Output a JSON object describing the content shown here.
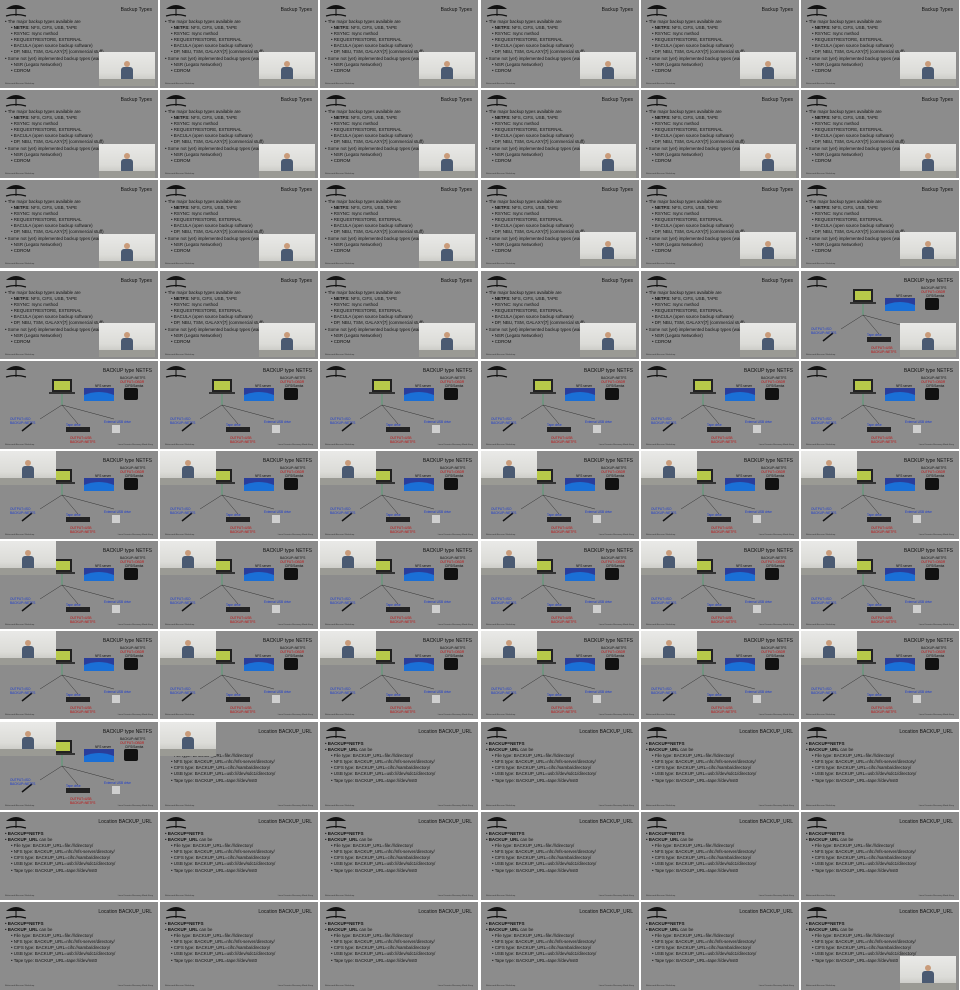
{
  "grid": {
    "columns": 6,
    "rows": 11
  },
  "colors": {
    "slide_bg": "#8c8c8c",
    "text": "#111111",
    "blue_label": "#1b3bd0",
    "red_label": "#c01010"
  },
  "slides": {
    "types": {
      "title": "Backup Types",
      "lines": [
        {
          "level": 1,
          "text": "The major backup types available are"
        },
        {
          "level": 2,
          "bold": "NETFS:",
          "text": " NFS, CIFS, USB, TAPE"
        },
        {
          "level": 2,
          "text": "RSYNC: rsync method"
        },
        {
          "level": 2,
          "text": "REQUESTRESTORE, EXTERNAL"
        },
        {
          "level": 2,
          "text": "BACULA (open source backup software)"
        },
        {
          "level": 2,
          "text": "DP, NBU, TSM, GALAXY[7] (commercial stuff)"
        },
        {
          "level": 1,
          "text": "Some not (yet) implemented backup types (waiting on sponsors)"
        },
        {
          "level": 2,
          "text": "NSR (Legato Networker)"
        },
        {
          "level": 2,
          "text": "CDROM"
        }
      ]
    },
    "netfs": {
      "title": "BACKUP type NETFS",
      "labels": {
        "nfs_server": "NFS server",
        "cifs": "CIFS/Samba",
        "tape": "Tape drive",
        "usb": "External USB drive",
        "output_left": "OUTPUT=ISO",
        "backup_left": "BACKUP=NETFS",
        "output_mid": "OUTPUT=USB",
        "backup_mid": "BACKUP=NETFS",
        "output_right": "OUTPUT=OBDR",
        "backup_right": "BACKUP=NETFS"
      }
    },
    "url": {
      "title": "Location BACKUP_URL",
      "lines": [
        {
          "level": 1,
          "bold": "BACKUP=NETFS",
          "text": ""
        },
        {
          "level": 1,
          "bold": "BACKUP_URL",
          "text": " can be"
        },
        {
          "level": 2,
          "text": "File type: BACKUP_URL=file:///directory/"
        },
        {
          "level": 2,
          "text": "NFS type: BACKUP_URL=nfs://nfs-server/directory/"
        },
        {
          "level": 2,
          "text": "CIFS type: BACKUP_URL=cifs://samba/directory/"
        },
        {
          "level": 2,
          "text": "USB type: BACKUP_URL=usb:///dev/sdc1/directory/"
        },
        {
          "level": 2,
          "text": "Tape type: BACKUP_URL=tape:///dev/nst0"
        }
      ]
    },
    "footer": "Relax-and-Recover Workshop",
    "footer_right": "Linux Disaster Recovery Made Easy"
  },
  "tiles": [
    {
      "type": "types",
      "video": "tr"
    },
    {
      "type": "types",
      "video": "tr"
    },
    {
      "type": "types",
      "video": "tr"
    },
    {
      "type": "types",
      "video": "tr"
    },
    {
      "type": "types",
      "video": "tr"
    },
    {
      "type": "types",
      "video": "tr"
    },
    {
      "type": "types",
      "video": "br"
    },
    {
      "type": "types",
      "video": "br"
    },
    {
      "type": "types",
      "video": "br"
    },
    {
      "type": "types",
      "video": "br"
    },
    {
      "type": "types",
      "video": "br"
    },
    {
      "type": "types",
      "video": "br"
    },
    {
      "type": "types",
      "video": "br"
    },
    {
      "type": "types",
      "video": "br"
    },
    {
      "type": "types",
      "video": "br"
    },
    {
      "type": "types",
      "video": "tr"
    },
    {
      "type": "types",
      "video": "tr"
    },
    {
      "type": "types",
      "video": "tr"
    },
    {
      "type": "types",
      "video": "tr"
    },
    {
      "type": "types",
      "video": "tr"
    },
    {
      "type": "types",
      "video": "tr"
    },
    {
      "type": "types",
      "video": "tr"
    },
    {
      "type": "types",
      "video": "tr"
    },
    {
      "type": "netfs",
      "video": "tr"
    },
    {
      "type": "netfs",
      "video": ""
    },
    {
      "type": "netfs",
      "video": ""
    },
    {
      "type": "netfs",
      "video": ""
    },
    {
      "type": "netfs",
      "video": ""
    },
    {
      "type": "netfs",
      "video": ""
    },
    {
      "type": "netfs",
      "video": ""
    },
    {
      "type": "netfs",
      "video": "tl"
    },
    {
      "type": "netfs",
      "video": "tl"
    },
    {
      "type": "netfs",
      "video": "tl"
    },
    {
      "type": "netfs",
      "video": "tl"
    },
    {
      "type": "netfs",
      "video": "tl"
    },
    {
      "type": "netfs",
      "video": "tl"
    },
    {
      "type": "netfs",
      "video": "tl"
    },
    {
      "type": "netfs",
      "video": "tl"
    },
    {
      "type": "netfs",
      "video": "tl"
    },
    {
      "type": "netfs",
      "video": "tl"
    },
    {
      "type": "netfs",
      "video": "tl"
    },
    {
      "type": "netfs",
      "video": "tl"
    },
    {
      "type": "netfs",
      "video": "tl"
    },
    {
      "type": "netfs",
      "video": "tl"
    },
    {
      "type": "netfs",
      "video": "tl"
    },
    {
      "type": "netfs",
      "video": "tl"
    },
    {
      "type": "netfs",
      "video": "tl"
    },
    {
      "type": "netfs",
      "video": "tl"
    },
    {
      "type": "netfs",
      "video": "tl"
    },
    {
      "type": "url",
      "video": "tl"
    },
    {
      "type": "url",
      "video": ""
    },
    {
      "type": "url",
      "video": ""
    },
    {
      "type": "url",
      "video": ""
    },
    {
      "type": "url",
      "video": ""
    },
    {
      "type": "url",
      "video": ""
    },
    {
      "type": "url",
      "video": ""
    },
    {
      "type": "url",
      "video": ""
    },
    {
      "type": "url",
      "video": ""
    },
    {
      "type": "url",
      "video": ""
    },
    {
      "type": "url",
      "video": ""
    },
    {
      "type": "url",
      "video": ""
    },
    {
      "type": "url",
      "video": ""
    },
    {
      "type": "url",
      "video": ""
    },
    {
      "type": "url",
      "video": ""
    },
    {
      "type": "url",
      "video": ""
    },
    {
      "type": "url",
      "video": "br"
    }
  ]
}
